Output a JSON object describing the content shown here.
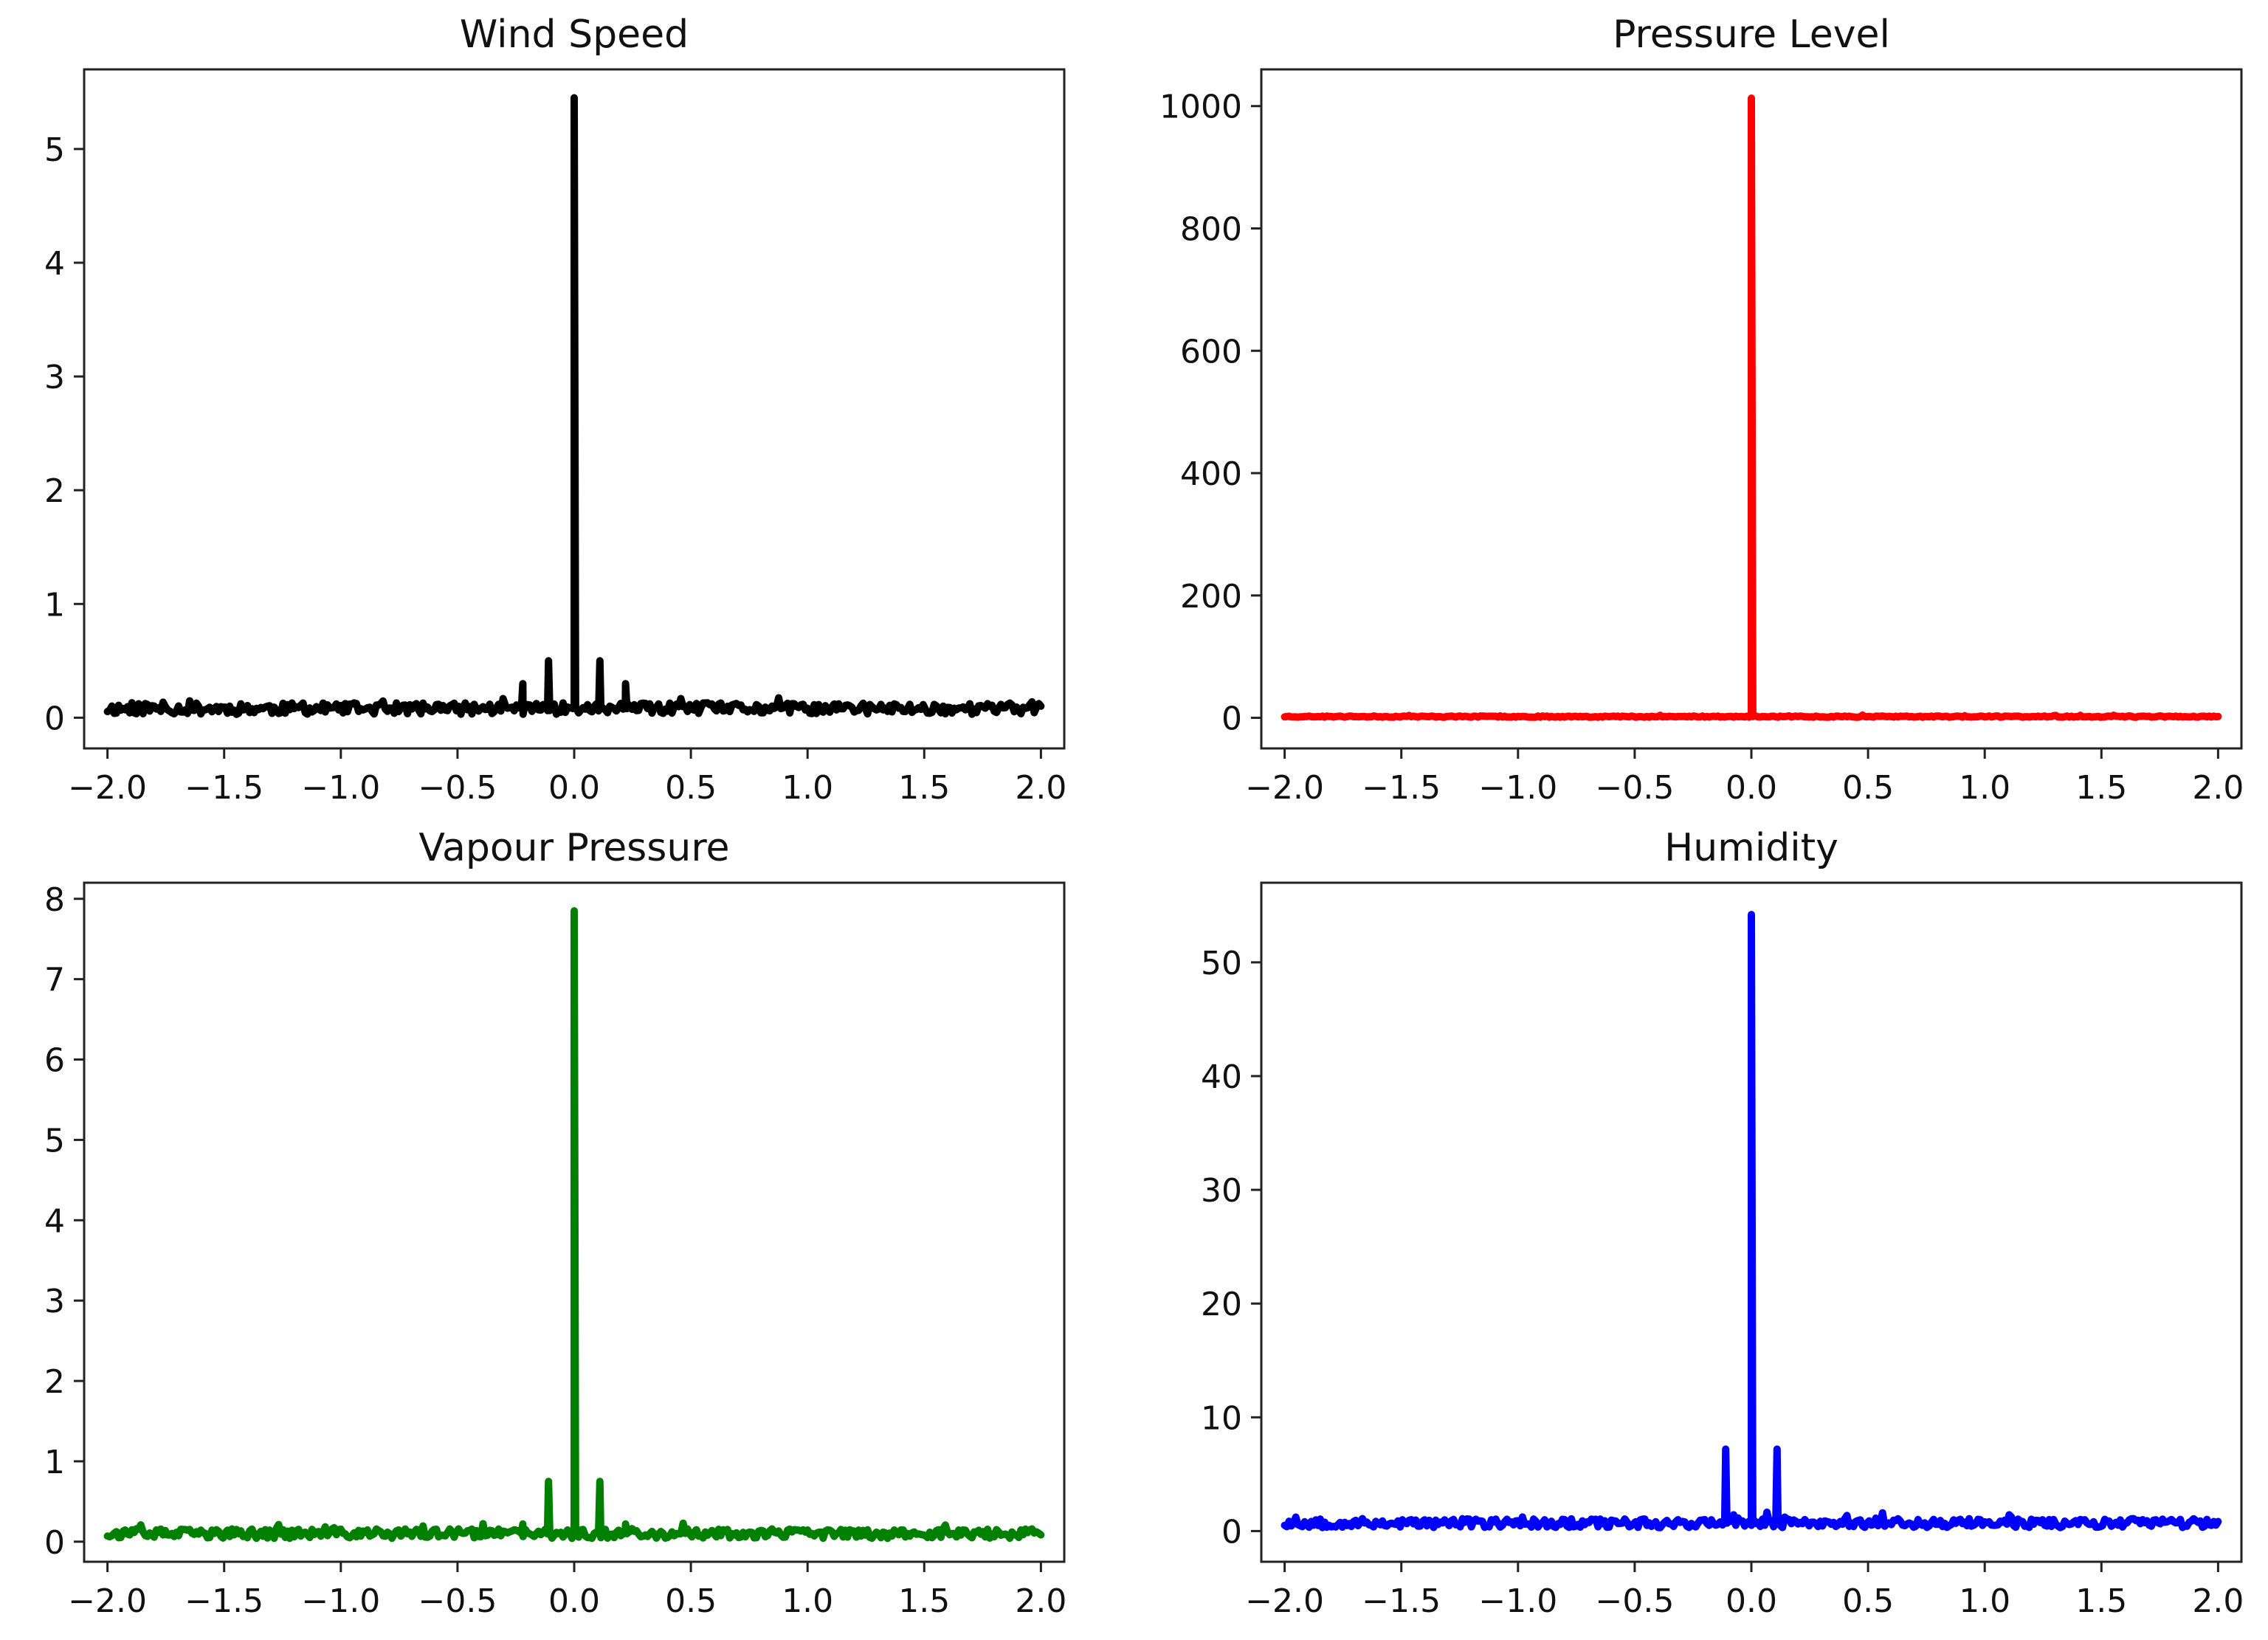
{
  "chart_data": [
    {
      "type": "line",
      "title": "Wind Speed",
      "xlabel": "",
      "ylabel": "",
      "xlim": [
        -2.1,
        2.1
      ],
      "ylim": [
        -0.27,
        5.7
      ],
      "xticks": [
        -2.0,
        -1.5,
        -1.0,
        -0.5,
        0.0,
        0.5,
        1.0,
        1.5,
        2.0
      ],
      "xtick_labels": [
        "−2.0",
        "−1.5",
        "−1.0",
        "−0.5",
        "0.0",
        "0.5",
        "1.0",
        "1.5",
        "2.0"
      ],
      "yticks": [
        0,
        1,
        2,
        3,
        4,
        5
      ],
      "ytick_labels": [
        "0",
        "1",
        "2",
        "3",
        "4",
        "5"
      ],
      "grid": false,
      "color": "#000000",
      "baseline": 0.08,
      "noise": 0.05,
      "seed": 11,
      "peaks": [
        {
          "x": 0.0,
          "y": 5.45
        },
        {
          "x": -0.11,
          "y": 0.5
        },
        {
          "x": 0.11,
          "y": 0.5
        },
        {
          "x": -0.22,
          "y": 0.3
        },
        {
          "x": 0.22,
          "y": 0.3
        }
      ]
    },
    {
      "type": "line",
      "title": "Pressure Level",
      "xlabel": "",
      "ylabel": "",
      "xlim": [
        -2.1,
        2.1
      ],
      "ylim": [
        -50,
        1060
      ],
      "xticks": [
        -2.0,
        -1.5,
        -1.0,
        -0.5,
        0.0,
        0.5,
        1.0,
        1.5,
        2.0
      ],
      "xtick_labels": [
        "−2.0",
        "−1.5",
        "−1.0",
        "−0.5",
        "0.0",
        "0.5",
        "1.0",
        "1.5",
        "2.0"
      ],
      "yticks": [
        0,
        200,
        400,
        600,
        800,
        1000
      ],
      "ytick_labels": [
        "0",
        "200",
        "400",
        "600",
        "800",
        "1000"
      ],
      "grid": false,
      "color": "#ff0000",
      "baseline": 2,
      "noise": 1,
      "seed": 23,
      "peaks": [
        {
          "x": 0.0,
          "y": 1013
        }
      ]
    },
    {
      "type": "line",
      "title": "Vapour Pressure",
      "xlabel": "",
      "ylabel": "",
      "xlim": [
        -2.1,
        2.1
      ],
      "ylim": [
        -0.25,
        8.2
      ],
      "xticks": [
        -2.0,
        -1.5,
        -1.0,
        -0.5,
        0.0,
        0.5,
        1.0,
        1.5,
        2.0
      ],
      "xtick_labels": [
        "−2.0",
        "−1.5",
        "−1.0",
        "−0.5",
        "0.0",
        "0.5",
        "1.0",
        "1.5",
        "2.0"
      ],
      "yticks": [
        0,
        1,
        2,
        3,
        4,
        5,
        6,
        7,
        8
      ],
      "ytick_labels": [
        "0",
        "1",
        "2",
        "3",
        "4",
        "5",
        "6",
        "7",
        "8"
      ],
      "grid": false,
      "color": "#008000",
      "baseline": 0.1,
      "noise": 0.06,
      "seed": 37,
      "peaks": [
        {
          "x": 0.0,
          "y": 7.85
        },
        {
          "x": -0.11,
          "y": 0.75
        },
        {
          "x": 0.11,
          "y": 0.75
        },
        {
          "x": -0.22,
          "y": 0.22
        },
        {
          "x": 0.22,
          "y": 0.22
        }
      ]
    },
    {
      "type": "line",
      "title": "Humidity",
      "xlabel": "",
      "ylabel": "",
      "xlim": [
        -2.1,
        2.1
      ],
      "ylim": [
        -2.7,
        57
      ],
      "xticks": [
        -2.0,
        -1.5,
        -1.0,
        -0.5,
        0.0,
        0.5,
        1.0,
        1.5,
        2.0
      ],
      "xtick_labels": [
        "−2.0",
        "−1.5",
        "−1.0",
        "−0.5",
        "0.0",
        "0.5",
        "1.0",
        "1.5",
        "2.0"
      ],
      "yticks": [
        0,
        10,
        20,
        30,
        40,
        50
      ],
      "ytick_labels": [
        "0",
        "10",
        "20",
        "30",
        "40",
        "50"
      ],
      "grid": false,
      "color": "#0000ff",
      "baseline": 0.7,
      "noise": 0.4,
      "seed": 53,
      "peaks": [
        {
          "x": 0.0,
          "y": 54.2
        },
        {
          "x": -0.11,
          "y": 7.2
        },
        {
          "x": 0.11,
          "y": 7.2
        }
      ]
    }
  ]
}
